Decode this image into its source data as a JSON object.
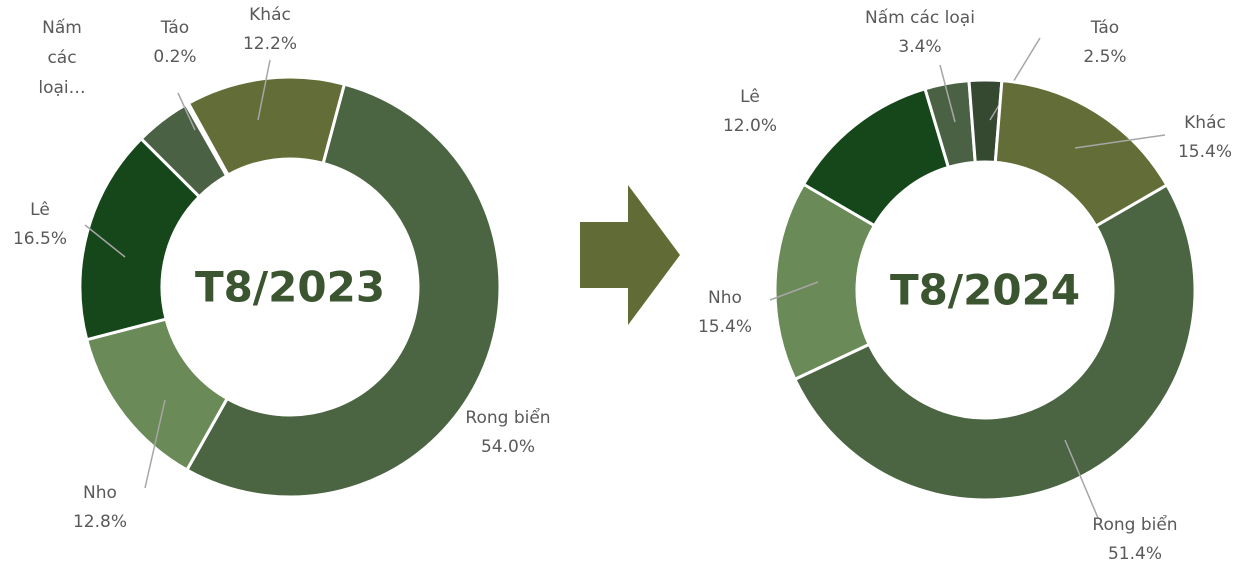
{
  "chart_data": [
    {
      "type": "donut",
      "title": "T8/2023",
      "categories": [
        "Rong biển",
        "Nho",
        "Lê",
        "Nấm các loại…",
        "Táo",
        "Khác"
      ],
      "values": [
        54.0,
        12.8,
        16.5,
        4.3,
        0.2,
        12.2
      ],
      "value_labels": [
        "54.0%",
        "12.8%",
        "16.5%",
        null,
        "0.2%",
        "12.2%"
      ],
      "colors": [
        "#4b6542",
        "#6a8a58",
        "#16471a",
        "#4a6243",
        "#34492f",
        "#636d37"
      ]
    },
    {
      "type": "donut",
      "title": "T8/2024",
      "categories": [
        "Rong biển",
        "Nho",
        "Lê",
        "Nấm các loại",
        "Táo",
        "Khác"
      ],
      "values": [
        51.4,
        15.4,
        12.0,
        3.4,
        2.5,
        15.4
      ],
      "value_labels": [
        "51.4%",
        "15.4%",
        "12.0%",
        "3.4%",
        "2.5%",
        "15.4%"
      ],
      "colors": [
        "#4b6542",
        "#6a8a58",
        "#16471a",
        "#4a6243",
        "#34492f",
        "#636d37"
      ]
    }
  ]
}
